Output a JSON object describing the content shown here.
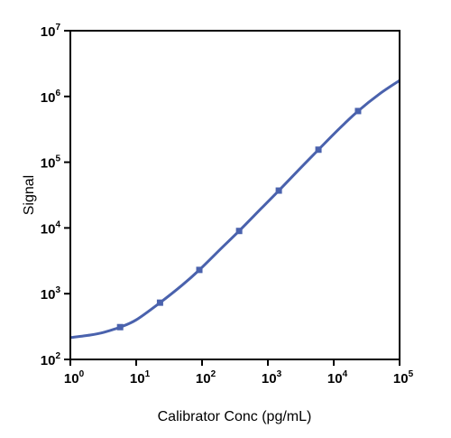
{
  "chart_data": {
    "type": "line",
    "title": "",
    "xlabel": "Calibrator Conc (pg/mL)",
    "ylabel": "Signal",
    "x_scale": "log",
    "y_scale": "log",
    "xlim": [
      1,
      100000
    ],
    "ylim": [
      100,
      10000000
    ],
    "grid": false,
    "legend": "none",
    "x_ticks": [
      {
        "base": "10",
        "exp": "0",
        "value": 1
      },
      {
        "base": "10",
        "exp": "1",
        "value": 10
      },
      {
        "base": "10",
        "exp": "2",
        "value": 100
      },
      {
        "base": "10",
        "exp": "3",
        "value": 1000
      },
      {
        "base": "10",
        "exp": "4",
        "value": 10000
      },
      {
        "base": "10",
        "exp": "5",
        "value": 100000
      }
    ],
    "y_ticks": [
      {
        "base": "10",
        "exp": "2",
        "value": 100
      },
      {
        "base": "10",
        "exp": "3",
        "value": 1000
      },
      {
        "base": "10",
        "exp": "4",
        "value": 10000
      },
      {
        "base": "10",
        "exp": "5",
        "value": 100000
      },
      {
        "base": "10",
        "exp": "6",
        "value": 1000000
      },
      {
        "base": "10",
        "exp": "7",
        "value": 10000000
      }
    ],
    "series": [
      {
        "color": "#4a62ad",
        "points": [
          {
            "x": 5.7,
            "y": 310
          },
          {
            "x": 23,
            "y": 730
          },
          {
            "x": 91,
            "y": 2300
          },
          {
            "x": 366,
            "y": 9000
          },
          {
            "x": 1465,
            "y": 37000
          },
          {
            "x": 5860,
            "y": 155000
          },
          {
            "x": 23400,
            "y": 600000
          }
        ],
        "fit_curve": [
          {
            "x": 1,
            "y": 215
          },
          {
            "x": 2,
            "y": 235
          },
          {
            "x": 3.2,
            "y": 258
          },
          {
            "x": 5.7,
            "y": 310
          },
          {
            "x": 10,
            "y": 400
          },
          {
            "x": 23,
            "y": 730
          },
          {
            "x": 50,
            "y": 1350
          },
          {
            "x": 91,
            "y": 2300
          },
          {
            "x": 200,
            "y": 5000
          },
          {
            "x": 366,
            "y": 9000
          },
          {
            "x": 800,
            "y": 20000
          },
          {
            "x": 1465,
            "y": 37000
          },
          {
            "x": 3000,
            "y": 78000
          },
          {
            "x": 5860,
            "y": 155000
          },
          {
            "x": 12000,
            "y": 320000
          },
          {
            "x": 23400,
            "y": 600000
          },
          {
            "x": 50000,
            "y": 1100000
          },
          {
            "x": 100000,
            "y": 1750000
          }
        ]
      }
    ]
  }
}
